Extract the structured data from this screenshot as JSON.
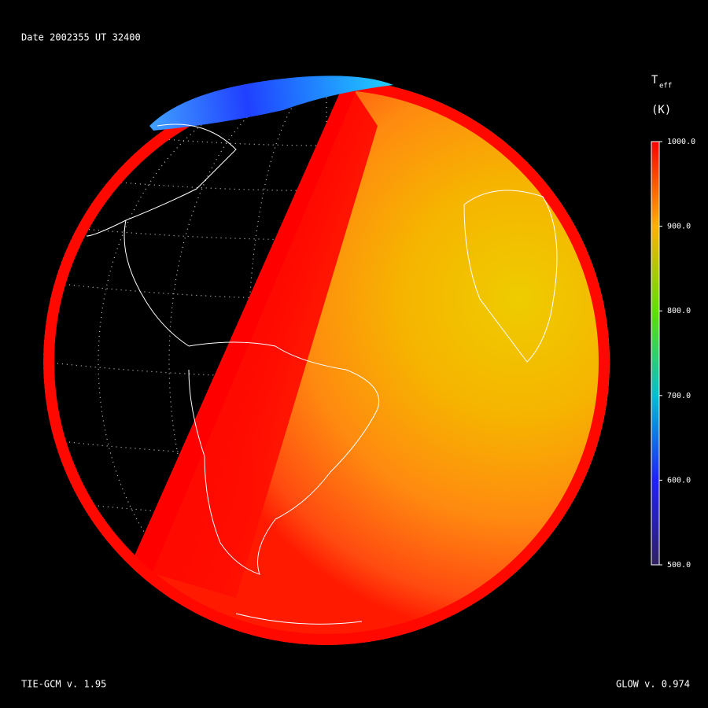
{
  "header": {
    "date_label": "Date 2002355  UT 32400"
  },
  "colorbar": {
    "symbol": "T",
    "subscript": "eff",
    "unit": "(K)",
    "range": [
      500,
      1000
    ],
    "ticks": [
      {
        "value": 1000,
        "label": "1000.0"
      },
      {
        "value": 900,
        "label": "900.0"
      },
      {
        "value": 800,
        "label": "800.0"
      },
      {
        "value": 700,
        "label": "700.0"
      },
      {
        "value": 600,
        "label": "600.0"
      },
      {
        "value": 500,
        "label": "500.0"
      }
    ]
  },
  "footer": {
    "left": "TIE-GCM v. 1.95",
    "right": "GLOW v. 0.974"
  }
}
